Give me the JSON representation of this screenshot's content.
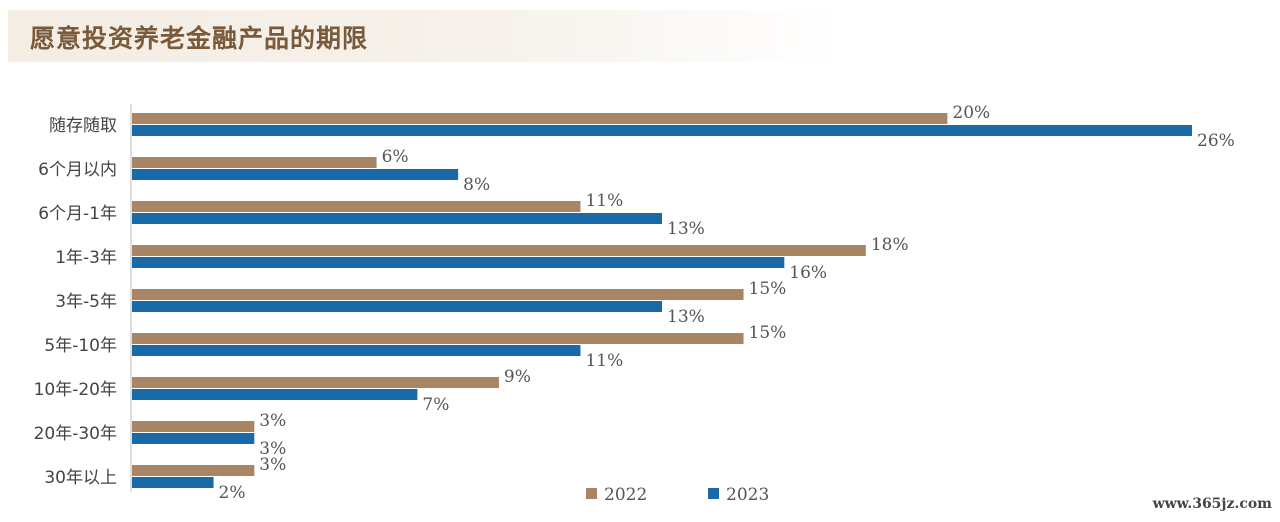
{
  "chart_data": {
    "type": "bar",
    "orientation": "horizontal",
    "title": "愿意投资养老金融产品的期限",
    "categories": [
      "随存随取",
      "6个月以内",
      "6个月-1年",
      "1年-3年",
      "3年-5年",
      "5年-10年",
      "10年-20年",
      "20年-30年",
      "30年以上"
    ],
    "series": [
      {
        "name": "2022",
        "color": "#a88563",
        "values": [
          20,
          6,
          11,
          18,
          15,
          15,
          9,
          3,
          3
        ],
        "labels": [
          "20%",
          "6%",
          "11%",
          "18%",
          "15%",
          "15%",
          "9%",
          "3%",
          "3%"
        ]
      },
      {
        "name": "2023",
        "color": "#1a6aa8",
        "values": [
          26,
          8,
          13,
          16,
          13,
          11,
          7,
          3,
          2
        ],
        "labels": [
          "26%",
          "8%",
          "13%",
          "16%",
          "13%",
          "11%",
          "7%",
          "3%",
          "2%"
        ]
      }
    ],
    "unit": "%",
    "xlim": [
      0,
      26
    ],
    "legend_position": "bottom-right",
    "grid": false
  },
  "watermark": "www.365jz.com"
}
